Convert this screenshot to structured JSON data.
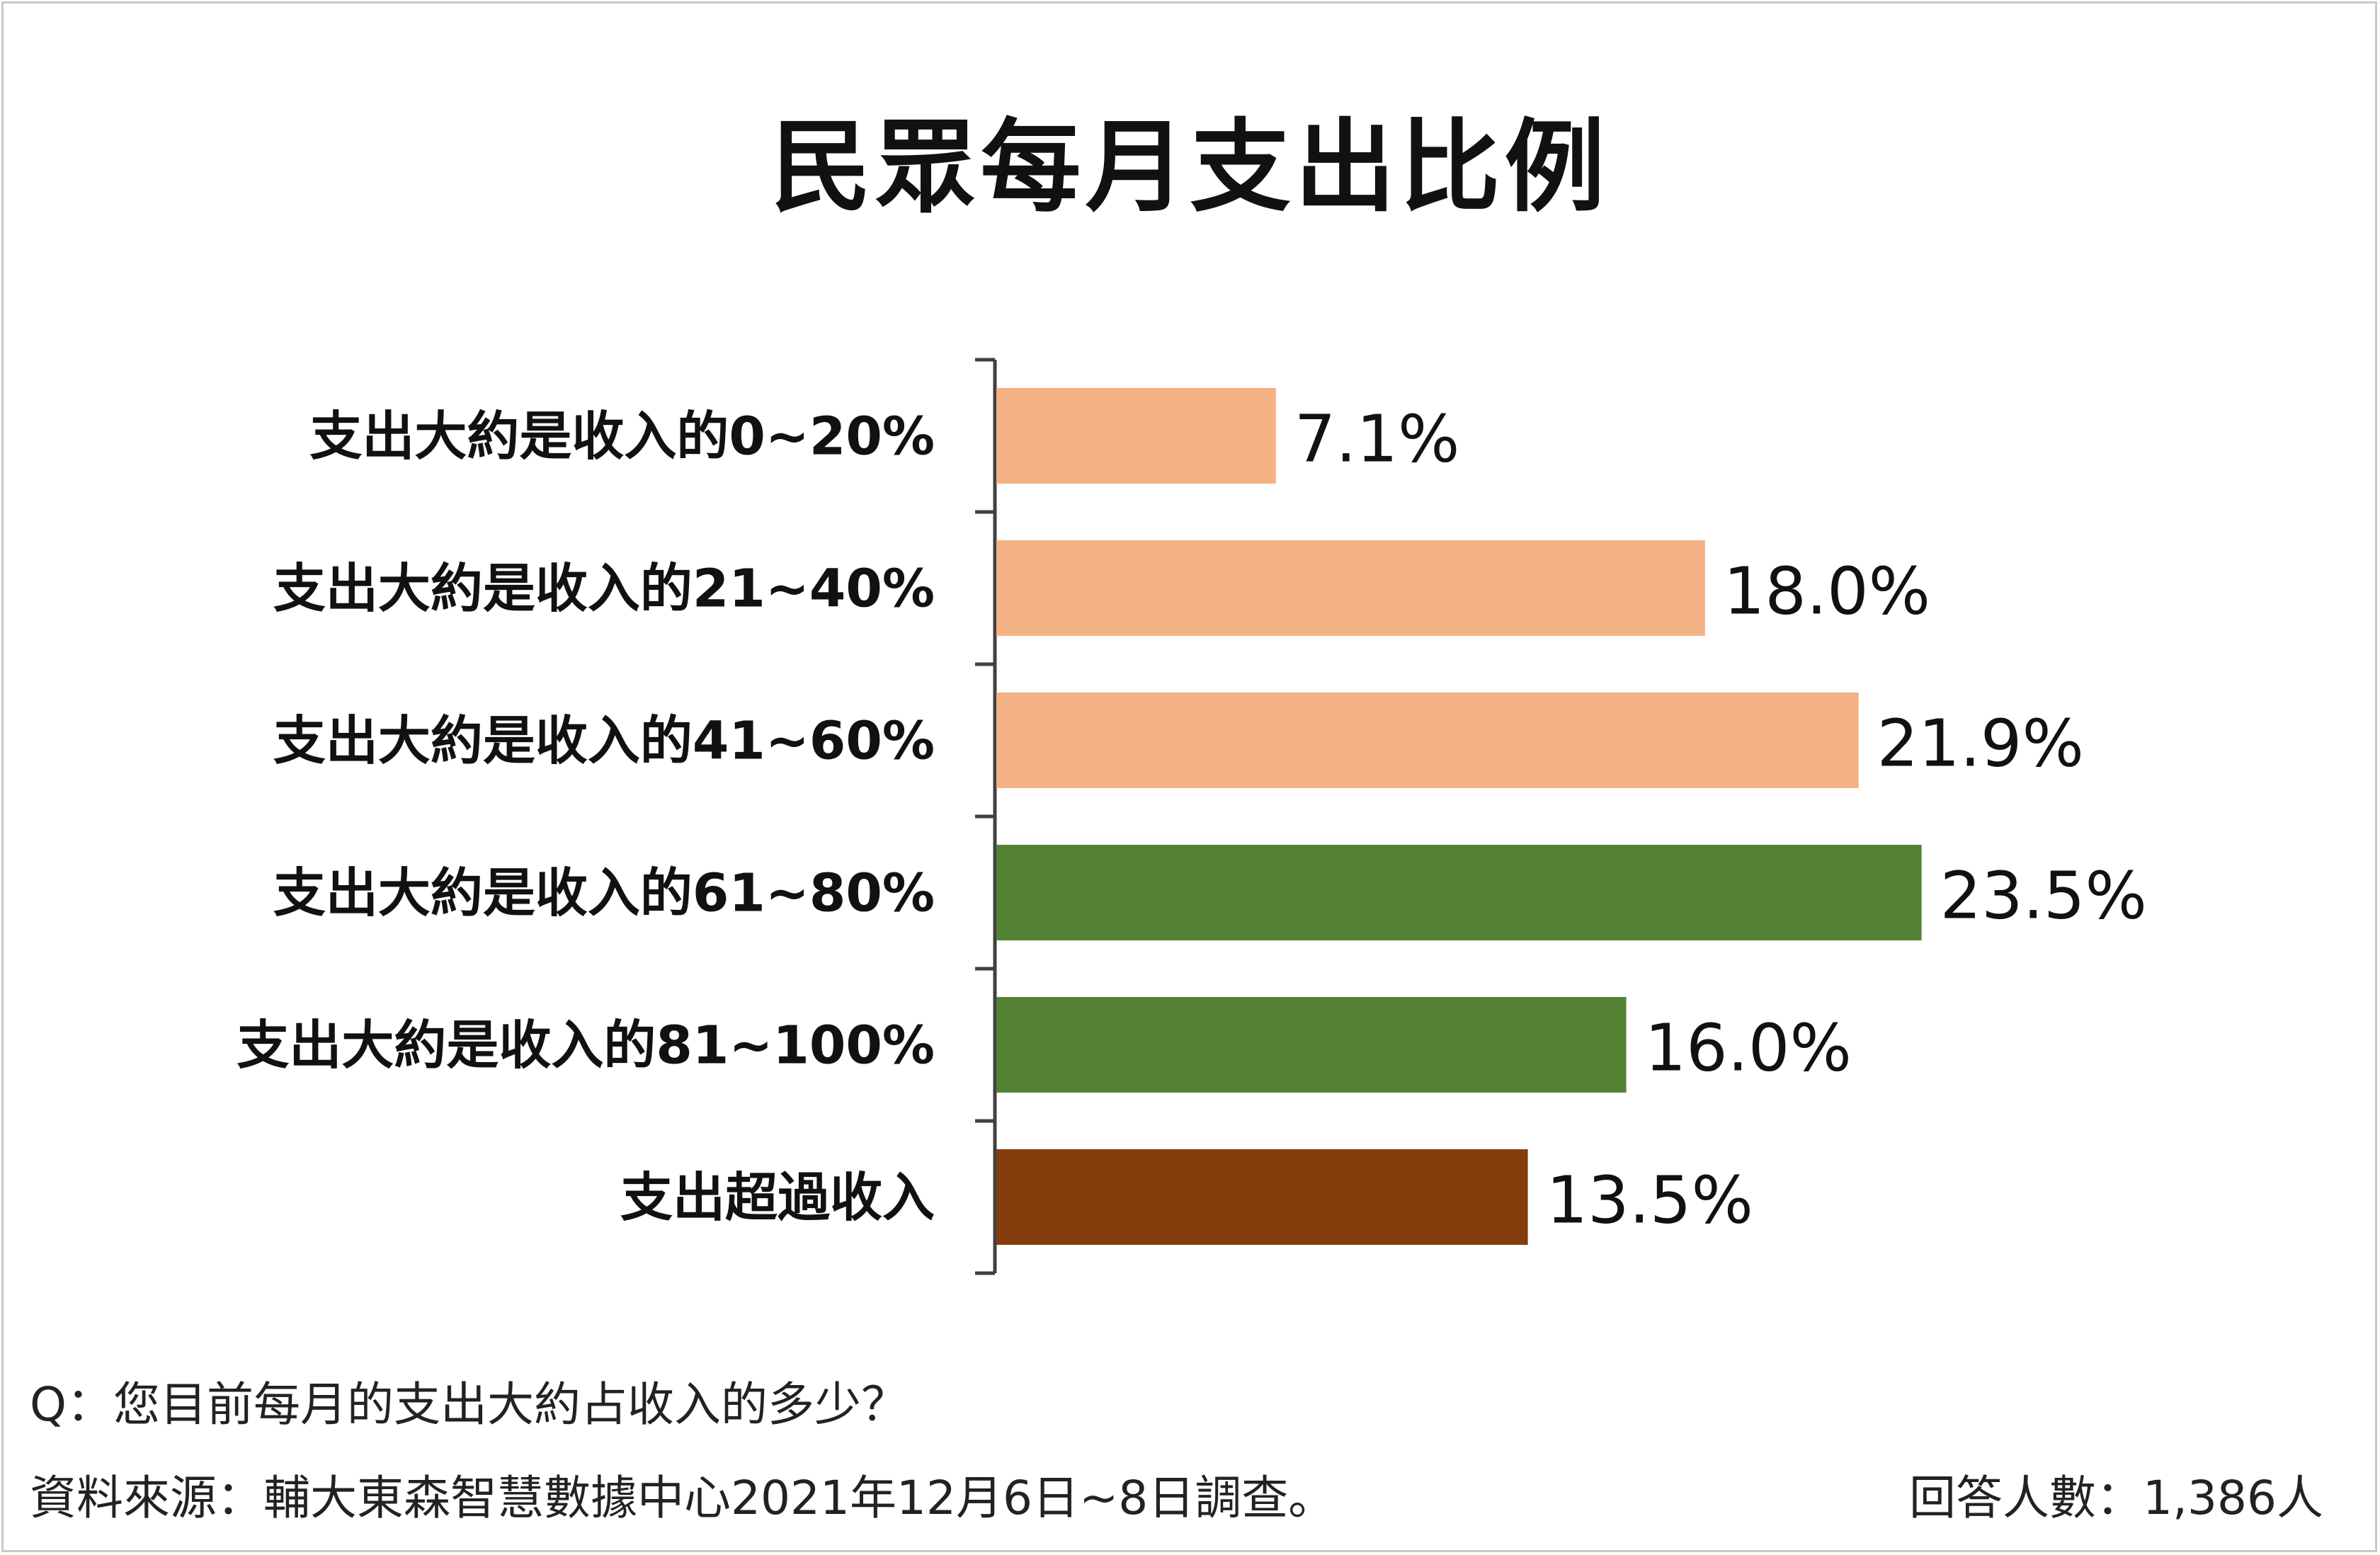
{
  "chart_data": {
    "type": "bar",
    "orientation": "horizontal",
    "title": "民眾每月支出比例",
    "categories": [
      "支出大約是收入的0~20%",
      "支出大約是收入的21~40%",
      "支出大約是收入的41~60%",
      "支出大約是收入的61~80%",
      "支出大約是收入的81~100%",
      "支出超過收入"
    ],
    "values": [
      7.1,
      18.0,
      21.9,
      23.5,
      16.0,
      13.5
    ],
    "value_labels": [
      "7.1%",
      "18.0%",
      "21.9%",
      "23.5%",
      "16.0%",
      "13.5%"
    ],
    "colors": [
      "#f4b183",
      "#f4b183",
      "#f4b183",
      "#548235",
      "#548235",
      "#843c0c"
    ],
    "xlim": [
      0,
      25
    ],
    "grid": false,
    "legend": "none"
  },
  "footer": {
    "question": "Q：您目前每月的支出大約占收入的多少？",
    "source": "資料來源：輔大東森智慧數據中心2021年12月6日~8日調查。",
    "respondents": "回答人數：1,386人"
  }
}
